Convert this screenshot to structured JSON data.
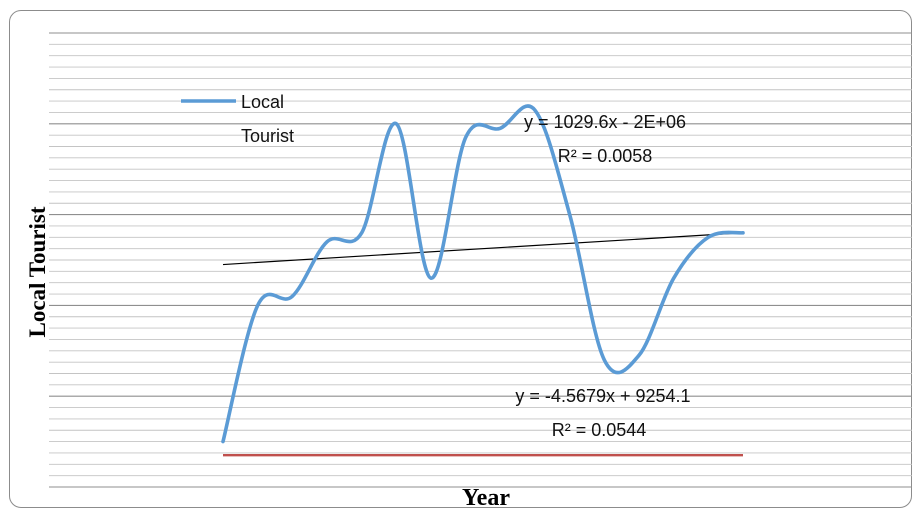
{
  "chart_data": {
    "type": "line",
    "title": "",
    "xlabel": "Year",
    "ylabel": "Local Tourist",
    "grid": true,
    "legend_position": "top-left",
    "series": [
      {
        "name": "Local Tourist",
        "color": "#5b9bd5",
        "values": [
          10,
          40,
          42,
          54,
          56,
          80,
          46,
          77,
          79,
          83,
          60,
          28,
          29,
          46,
          55,
          56
        ]
      }
    ],
    "trendlines": [
      {
        "equation": "y = 1029.6x - 2E+06",
        "r_squared": "R² = 0.0058",
        "color": "#000000",
        "start": 49,
        "end": 56
      },
      {
        "equation": "y = -4.5679x + 9254.1",
        "r_squared": "R² = 0.0544",
        "color": "#c0504d",
        "start": 7,
        "end": 7
      }
    ],
    "ylim": [
      0,
      100
    ]
  }
}
